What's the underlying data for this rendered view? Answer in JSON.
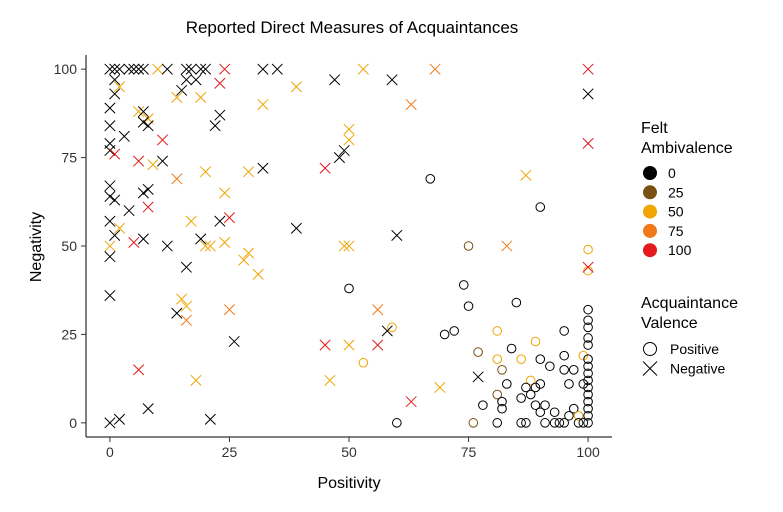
{
  "chart_data": {
    "type": "scatter",
    "title": "Reported Direct Measures of Acquaintances",
    "xlabel": "Positivity",
    "ylabel": "Negativity",
    "xlim": [
      -5,
      105
    ],
    "ylim": [
      -4,
      104
    ],
    "x_ticks": [
      "0",
      "25",
      "50",
      "75",
      "100"
    ],
    "y_ticks": [
      "0",
      "25",
      "50",
      "75",
      "100"
    ],
    "grid": false,
    "legend_placement": "right",
    "color_legend": {
      "title_lines": [
        "Felt",
        "Ambivalence"
      ],
      "items": [
        {
          "label": "0",
          "color": "#000000"
        },
        {
          "label": "25",
          "color": "#7a4f14"
        },
        {
          "label": "50",
          "color": "#f0a500"
        },
        {
          "label": "75",
          "color": "#f07a1a"
        },
        {
          "label": "100",
          "color": "#e41a1c"
        }
      ]
    },
    "shape_legend": {
      "title_lines": [
        "Acquaintance",
        "Valence"
      ],
      "items": [
        {
          "label": "Positive",
          "shape": "circle"
        },
        {
          "label": "Negative",
          "shape": "cross"
        }
      ]
    },
    "series": [
      {
        "name": "Positive",
        "shape": "circle",
        "points": [
          {
            "x": 67,
            "y": 69,
            "c": 0
          },
          {
            "x": 90,
            "y": 61,
            "c": 0
          },
          {
            "x": 75,
            "y": 50,
            "c": 25
          },
          {
            "x": 100,
            "y": 49,
            "c": 50
          },
          {
            "x": 100,
            "y": 43,
            "c": 50
          },
          {
            "x": 50,
            "y": 38,
            "c": 0
          },
          {
            "x": 74,
            "y": 39,
            "c": 0
          },
          {
            "x": 75,
            "y": 33,
            "c": 0
          },
          {
            "x": 85,
            "y": 34,
            "c": 0
          },
          {
            "x": 100,
            "y": 32,
            "c": 0
          },
          {
            "x": 100,
            "y": 29,
            "c": 0
          },
          {
            "x": 100,
            "y": 27,
            "c": 0
          },
          {
            "x": 95,
            "y": 26,
            "c": 0
          },
          {
            "x": 100,
            "y": 24,
            "c": 0
          },
          {
            "x": 100,
            "y": 22,
            "c": 0
          },
          {
            "x": 72,
            "y": 26,
            "c": 0
          },
          {
            "x": 70,
            "y": 25,
            "c": 0
          },
          {
            "x": 59,
            "y": 27,
            "c": 50
          },
          {
            "x": 81,
            "y": 26,
            "c": 50
          },
          {
            "x": 89,
            "y": 23,
            "c": 50
          },
          {
            "x": 84,
            "y": 21,
            "c": 0
          },
          {
            "x": 77,
            "y": 20,
            "c": 25
          },
          {
            "x": 81,
            "y": 18,
            "c": 50
          },
          {
            "x": 86,
            "y": 18,
            "c": 50
          },
          {
            "x": 90,
            "y": 18,
            "c": 0
          },
          {
            "x": 95,
            "y": 19,
            "c": 0
          },
          {
            "x": 99,
            "y": 19,
            "c": 50
          },
          {
            "x": 100,
            "y": 18,
            "c": 0
          },
          {
            "x": 100,
            "y": 16,
            "c": 0
          },
          {
            "x": 92,
            "y": 16,
            "c": 0
          },
          {
            "x": 82,
            "y": 15,
            "c": 25
          },
          {
            "x": 95,
            "y": 15,
            "c": 0
          },
          {
            "x": 97,
            "y": 15,
            "c": 0
          },
          {
            "x": 53,
            "y": 17,
            "c": 50
          },
          {
            "x": 100,
            "y": 14,
            "c": 0
          },
          {
            "x": 88,
            "y": 12,
            "c": 50
          },
          {
            "x": 96,
            "y": 11,
            "c": 0
          },
          {
            "x": 99,
            "y": 11,
            "c": 0
          },
          {
            "x": 100,
            "y": 12,
            "c": 0
          },
          {
            "x": 83,
            "y": 11,
            "c": 0
          },
          {
            "x": 87,
            "y": 10,
            "c": 0
          },
          {
            "x": 89,
            "y": 10,
            "c": 0
          },
          {
            "x": 90,
            "y": 11,
            "c": 0
          },
          {
            "x": 100,
            "y": 10,
            "c": 0
          },
          {
            "x": 100,
            "y": 8,
            "c": 0
          },
          {
            "x": 81,
            "y": 8,
            "c": 25
          },
          {
            "x": 86,
            "y": 7,
            "c": 0
          },
          {
            "x": 88,
            "y": 8,
            "c": 0
          },
          {
            "x": 100,
            "y": 6,
            "c": 0
          },
          {
            "x": 78,
            "y": 5,
            "c": 0
          },
          {
            "x": 82,
            "y": 6,
            "c": 0
          },
          {
            "x": 82,
            "y": 4,
            "c": 0
          },
          {
            "x": 89,
            "y": 5,
            "c": 0
          },
          {
            "x": 91,
            "y": 5,
            "c": 0
          },
          {
            "x": 93,
            "y": 3,
            "c": 0
          },
          {
            "x": 90,
            "y": 3,
            "c": 0
          },
          {
            "x": 97,
            "y": 4,
            "c": 0
          },
          {
            "x": 100,
            "y": 4,
            "c": 0
          },
          {
            "x": 96,
            "y": 2,
            "c": 0
          },
          {
            "x": 98,
            "y": 2,
            "c": 50
          },
          {
            "x": 100,
            "y": 2,
            "c": 0
          },
          {
            "x": 60,
            "y": 0,
            "c": 0
          },
          {
            "x": 76,
            "y": 0,
            "c": 25
          },
          {
            "x": 81,
            "y": 0,
            "c": 0
          },
          {
            "x": 86,
            "y": 0,
            "c": 0
          },
          {
            "x": 87,
            "y": 0,
            "c": 0
          },
          {
            "x": 91,
            "y": 0,
            "c": 0
          },
          {
            "x": 93,
            "y": 0,
            "c": 0
          },
          {
            "x": 94,
            "y": 0,
            "c": 0
          },
          {
            "x": 95,
            "y": 0,
            "c": 0
          },
          {
            "x": 98,
            "y": 0,
            "c": 0
          },
          {
            "x": 99,
            "y": 0,
            "c": 0
          },
          {
            "x": 100,
            "y": 0,
            "c": 0
          }
        ]
      },
      {
        "name": "Negative",
        "shape": "cross",
        "points": [
          {
            "x": 0,
            "y": 100,
            "c": 0
          },
          {
            "x": 1,
            "y": 100,
            "c": 0
          },
          {
            "x": 2,
            "y": 100,
            "c": 0
          },
          {
            "x": 4,
            "y": 100,
            "c": 0
          },
          {
            "x": 5,
            "y": 100,
            "c": 0
          },
          {
            "x": 6,
            "y": 100,
            "c": 0
          },
          {
            "x": 7,
            "y": 100,
            "c": 0
          },
          {
            "x": 10,
            "y": 100,
            "c": 50
          },
          {
            "x": 12,
            "y": 100,
            "c": 0
          },
          {
            "x": 16,
            "y": 100,
            "c": 0
          },
          {
            "x": 17,
            "y": 100,
            "c": 0
          },
          {
            "x": 19,
            "y": 100,
            "c": 0
          },
          {
            "x": 20,
            "y": 100,
            "c": 0
          },
          {
            "x": 24,
            "y": 100,
            "c": 100
          },
          {
            "x": 32,
            "y": 100,
            "c": 0
          },
          {
            "x": 35,
            "y": 100,
            "c": 0
          },
          {
            "x": 53,
            "y": 100,
            "c": 50
          },
          {
            "x": 68,
            "y": 100,
            "c": 75
          },
          {
            "x": 100,
            "y": 100,
            "c": 100
          },
          {
            "x": 1,
            "y": 97,
            "c": 0
          },
          {
            "x": 16,
            "y": 97,
            "c": 0
          },
          {
            "x": 18,
            "y": 97,
            "c": 0
          },
          {
            "x": 47,
            "y": 97,
            "c": 0
          },
          {
            "x": 59,
            "y": 97,
            "c": 0
          },
          {
            "x": 23,
            "y": 96,
            "c": 100
          },
          {
            "x": 2,
            "y": 95,
            "c": 50
          },
          {
            "x": 39,
            "y": 95,
            "c": 50
          },
          {
            "x": 1,
            "y": 93,
            "c": 0
          },
          {
            "x": 15,
            "y": 94,
            "c": 0
          },
          {
            "x": 100,
            "y": 93,
            "c": 0
          },
          {
            "x": 14,
            "y": 92,
            "c": 50
          },
          {
            "x": 19,
            "y": 92,
            "c": 50
          },
          {
            "x": 32,
            "y": 90,
            "c": 50
          },
          {
            "x": 63,
            "y": 90,
            "c": 75
          },
          {
            "x": 0,
            "y": 89,
            "c": 0
          },
          {
            "x": 6,
            "y": 88,
            "c": 50
          },
          {
            "x": 7,
            "y": 88,
            "c": 0
          },
          {
            "x": 23,
            "y": 87,
            "c": 0
          },
          {
            "x": 8,
            "y": 86,
            "c": 50
          },
          {
            "x": 7,
            "y": 85,
            "c": 0
          },
          {
            "x": 8,
            "y": 84,
            "c": 0
          },
          {
            "x": 0,
            "y": 84,
            "c": 0
          },
          {
            "x": 22,
            "y": 84,
            "c": 0
          },
          {
            "x": 3,
            "y": 81,
            "c": 0
          },
          {
            "x": 11,
            "y": 80,
            "c": 100
          },
          {
            "x": 50,
            "y": 80,
            "c": 50
          },
          {
            "x": 50,
            "y": 83,
            "c": 50
          },
          {
            "x": 100,
            "y": 79,
            "c": 100
          },
          {
            "x": 0,
            "y": 79,
            "c": 0
          },
          {
            "x": 0,
            "y": 77,
            "c": 0
          },
          {
            "x": 1,
            "y": 76,
            "c": 100
          },
          {
            "x": 49,
            "y": 77,
            "c": 0
          },
          {
            "x": 48,
            "y": 75,
            "c": 0
          },
          {
            "x": 6,
            "y": 74,
            "c": 100
          },
          {
            "x": 9,
            "y": 73,
            "c": 50
          },
          {
            "x": 11,
            "y": 74,
            "c": 0
          },
          {
            "x": 29,
            "y": 71,
            "c": 50
          },
          {
            "x": 32,
            "y": 72,
            "c": 0
          },
          {
            "x": 45,
            "y": 72,
            "c": 100
          },
          {
            "x": 20,
            "y": 71,
            "c": 50
          },
          {
            "x": 87,
            "y": 70,
            "c": 50
          },
          {
            "x": 14,
            "y": 69,
            "c": 75
          },
          {
            "x": 0,
            "y": 67,
            "c": 0
          },
          {
            "x": 7,
            "y": 65,
            "c": 0
          },
          {
            "x": 8,
            "y": 66,
            "c": 0
          },
          {
            "x": 0,
            "y": 64,
            "c": 0
          },
          {
            "x": 1,
            "y": 63,
            "c": 0
          },
          {
            "x": 24,
            "y": 65,
            "c": 50
          },
          {
            "x": 8,
            "y": 61,
            "c": 100
          },
          {
            "x": 4,
            "y": 60,
            "c": 0
          },
          {
            "x": 25,
            "y": 58,
            "c": 100
          },
          {
            "x": 0,
            "y": 57,
            "c": 0
          },
          {
            "x": 17,
            "y": 57,
            "c": 50
          },
          {
            "x": 23,
            "y": 57,
            "c": 0
          },
          {
            "x": 39,
            "y": 55,
            "c": 0
          },
          {
            "x": 2,
            "y": 55,
            "c": 50
          },
          {
            "x": 1,
            "y": 53,
            "c": 0
          },
          {
            "x": 60,
            "y": 53,
            "c": 0
          },
          {
            "x": 7,
            "y": 52,
            "c": 0
          },
          {
            "x": 19,
            "y": 52,
            "c": 0
          },
          {
            "x": 5,
            "y": 51,
            "c": 100
          },
          {
            "x": 12,
            "y": 50,
            "c": 0
          },
          {
            "x": 20,
            "y": 50,
            "c": 50
          },
          {
            "x": 21,
            "y": 50,
            "c": 50
          },
          {
            "x": 24,
            "y": 51,
            "c": 50
          },
          {
            "x": 49,
            "y": 50,
            "c": 50
          },
          {
            "x": 50,
            "y": 50,
            "c": 50
          },
          {
            "x": 83,
            "y": 50,
            "c": 75
          },
          {
            "x": 0,
            "y": 50,
            "c": 50
          },
          {
            "x": 0,
            "y": 47,
            "c": 0
          },
          {
            "x": 29,
            "y": 48,
            "c": 50
          },
          {
            "x": 28,
            "y": 46,
            "c": 50
          },
          {
            "x": 16,
            "y": 44,
            "c": 0
          },
          {
            "x": 31,
            "y": 42,
            "c": 50
          },
          {
            "x": 100,
            "y": 44,
            "c": 100
          },
          {
            "x": 0,
            "y": 36,
            "c": 0
          },
          {
            "x": 15,
            "y": 35,
            "c": 50
          },
          {
            "x": 16,
            "y": 33,
            "c": 50
          },
          {
            "x": 14,
            "y": 31,
            "c": 0
          },
          {
            "x": 25,
            "y": 32,
            "c": 75
          },
          {
            "x": 56,
            "y": 32,
            "c": 75
          },
          {
            "x": 16,
            "y": 29,
            "c": 75
          },
          {
            "x": 58,
            "y": 26,
            "c": 0
          },
          {
            "x": 26,
            "y": 23,
            "c": 0
          },
          {
            "x": 45,
            "y": 22,
            "c": 100
          },
          {
            "x": 50,
            "y": 22,
            "c": 50
          },
          {
            "x": 56,
            "y": 22,
            "c": 100
          },
          {
            "x": 6,
            "y": 15,
            "c": 100
          },
          {
            "x": 77,
            "y": 13,
            "c": 0
          },
          {
            "x": 18,
            "y": 12,
            "c": 50
          },
          {
            "x": 46,
            "y": 12,
            "c": 50
          },
          {
            "x": 69,
            "y": 10,
            "c": 50
          },
          {
            "x": 63,
            "y": 6,
            "c": 100
          },
          {
            "x": 8,
            "y": 4,
            "c": 0
          },
          {
            "x": 2,
            "y": 1,
            "c": 0
          },
          {
            "x": 21,
            "y": 1,
            "c": 0
          },
          {
            "x": 0,
            "y": 0,
            "c": 0
          }
        ]
      }
    ]
  }
}
